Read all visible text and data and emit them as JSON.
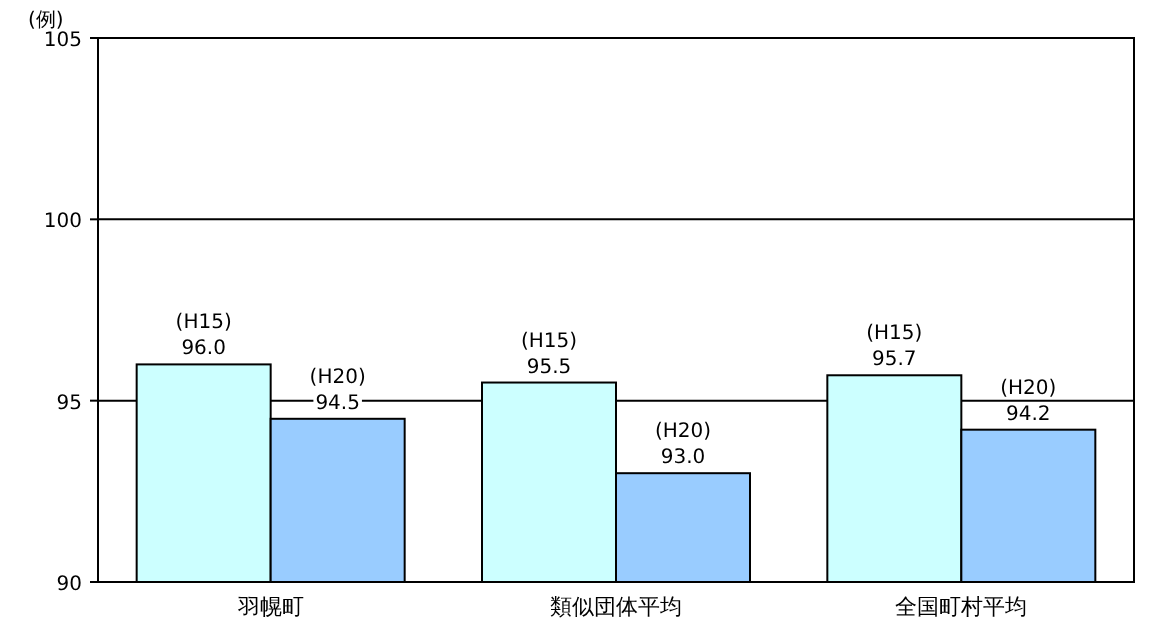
{
  "chart_data": {
    "type": "bar",
    "ylabel": "(例)",
    "categories": [
      "羽幌町",
      "類似団体平均",
      "全国町村平均"
    ],
    "series": [
      {
        "name": "(H15)",
        "color": "#ccffff",
        "values": [
          96.0,
          95.5,
          95.7
        ],
        "value_labels": [
          "96.0",
          "95.5",
          "95.7"
        ]
      },
      {
        "name": "(H20)",
        "color": "#99ccff",
        "values": [
          94.5,
          93.0,
          94.2
        ],
        "value_labels": [
          "94.5",
          "93.0",
          "94.2"
        ]
      }
    ],
    "ylim": [
      90,
      105
    ],
    "yticks": [
      90,
      95,
      100,
      105
    ],
    "grid": "y"
  }
}
